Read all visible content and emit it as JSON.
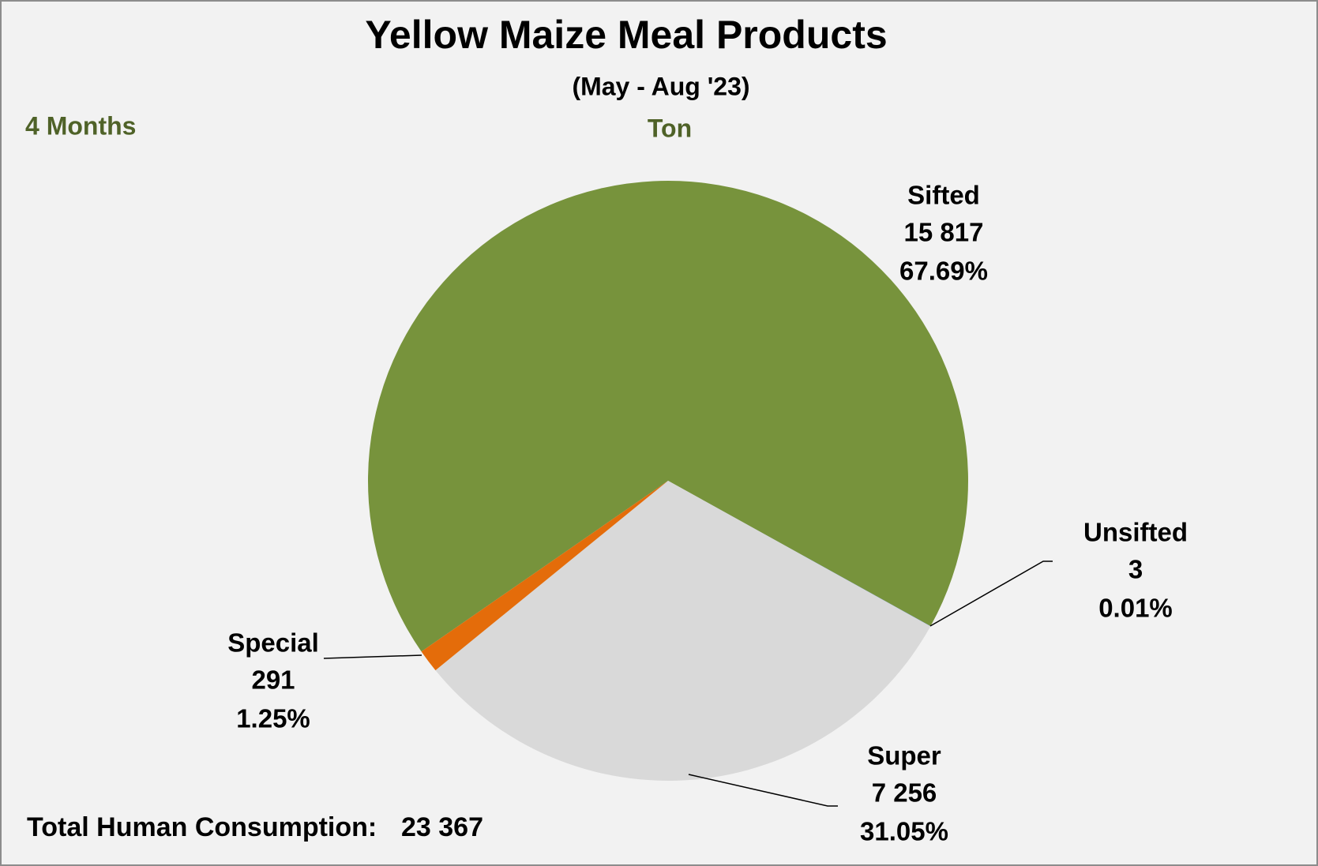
{
  "chart_data": {
    "type": "pie",
    "title": "Yellow Maize Meal Products",
    "subtitle": "(May - Aug '23)",
    "period": "4 Months",
    "unit": "Ton",
    "categories": [
      "Sifted",
      "Unsifted",
      "Super",
      "Special"
    ],
    "values": [
      15817,
      3,
      7256,
      291
    ],
    "value_labels": [
      "15 817",
      "3",
      "7 256",
      "291"
    ],
    "percentages": [
      67.69,
      0.01,
      31.05,
      1.25
    ],
    "percentage_labels": [
      "67.69%",
      "0.01%",
      "31.05%",
      "1.25%"
    ],
    "colors": [
      "#77933c",
      "#4f81bd",
      "#d9d9d9",
      "#e46c0a"
    ],
    "total_title": "Total Human Consumption:",
    "total": {
      "value": 23367,
      "label": "23 367"
    }
  }
}
